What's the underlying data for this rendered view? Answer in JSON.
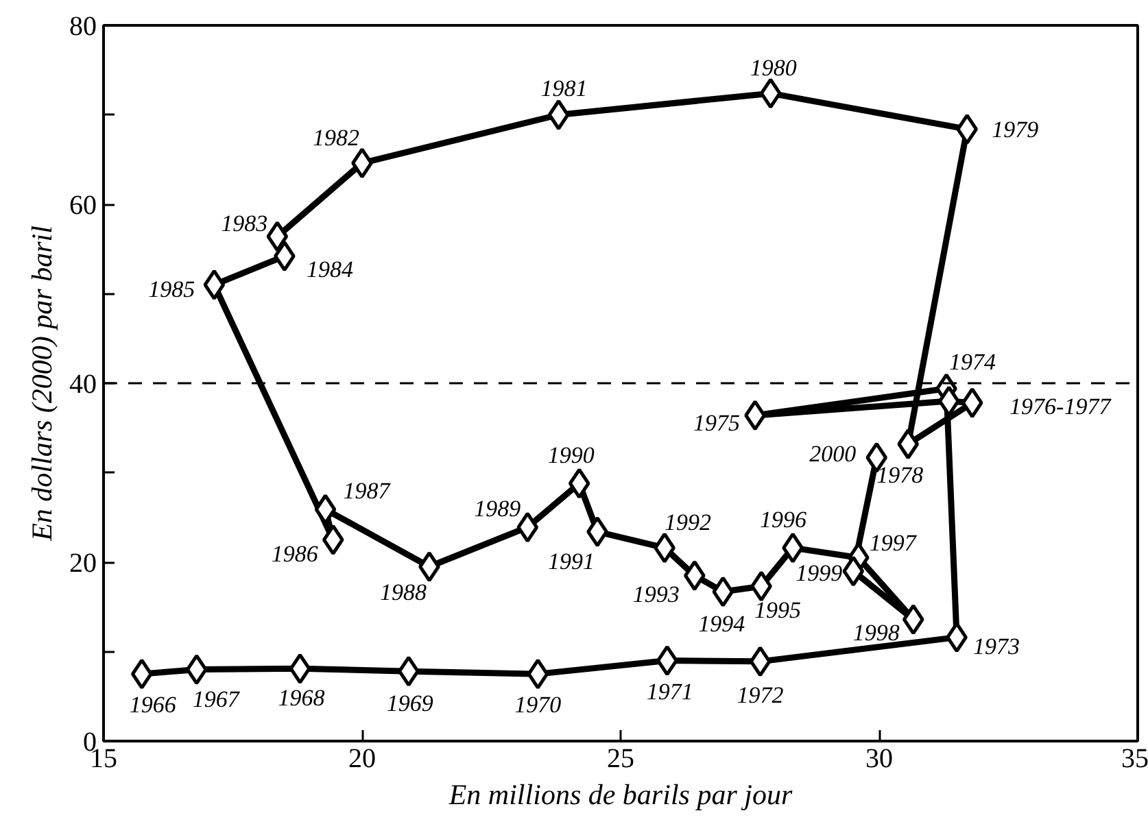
{
  "chart_data": {
    "type": "line",
    "xlabel": "En millions de barils par jour",
    "ylabel": "En dollars (2000) par baril",
    "marker": "diamond",
    "line_style": "solid",
    "series": [
      {
        "color": "#000000",
        "x": [
          15.74,
          16.8,
          18.8,
          20.9,
          23.4,
          25.9,
          27.7,
          31.5,
          31.3,
          27.6,
          31.35,
          31.8,
          30.56,
          31.7,
          27.9,
          23.8,
          20.0,
          18.36,
          18.5,
          17.14,
          19.44,
          19.29,
          21.3,
          23.2,
          24.2,
          24.55,
          25.85,
          26.43,
          26.98,
          27.72,
          28.33,
          29.6,
          30.66,
          29.5,
          29.95
        ],
        "values": [
          7.5,
          8.0,
          8.1,
          7.8,
          7.5,
          9.0,
          8.9,
          11.6,
          39.4,
          36.4,
          38.0,
          37.8,
          33.2,
          68.4,
          72.4,
          70.0,
          64.6,
          56.4,
          54.2,
          51.0,
          22.5,
          25.9,
          19.5,
          23.9,
          28.8,
          23.4,
          21.6,
          18.5,
          16.7,
          17.3,
          21.6,
          20.5,
          13.6,
          19.0,
          31.7
        ]
      }
    ],
    "xlim": [
      15,
      35
    ],
    "ylim": [
      0,
      80
    ],
    "xticks": [
      15,
      20,
      25,
      30,
      35
    ],
    "yticks": [
      0,
      {
        "value": 10,
        "label": null
      },
      20,
      {
        "value": 30,
        "label": null
      },
      40,
      {
        "value": 50,
        "label": null
      },
      60,
      {
        "value": 70,
        "label": null
      },
      80
    ],
    "grid": false,
    "ref_lines": [
      {
        "axis": "y",
        "value": 40,
        "label": null,
        "color": "#000000",
        "line_style": "dashed"
      }
    ],
    "annotations": [
      {
        "text": "1966",
        "x": 15.74,
        "y": 7.5
      },
      {
        "text": "1967",
        "x": 16.8,
        "y": 8.0
      },
      {
        "text": "1968",
        "x": 18.8,
        "y": 8.1
      },
      {
        "text": "1969",
        "x": 20.9,
        "y": 7.8
      },
      {
        "text": "1970",
        "x": 23.4,
        "y": 7.5
      },
      {
        "text": "1971",
        "x": 25.9,
        "y": 9.0
      },
      {
        "text": "1972",
        "x": 27.7,
        "y": 8.9
      },
      {
        "text": "1973",
        "x": 31.5,
        "y": 11.6
      },
      {
        "text": "1974",
        "x": 31.3,
        "y": 39.4
      },
      {
        "text": "1975",
        "x": 27.6,
        "y": 36.4
      },
      {
        "text": "1976-1977",
        "x": 31.8,
        "y": 37.8
      },
      {
        "text": "1978",
        "x": 30.56,
        "y": 33.2
      },
      {
        "text": "1979",
        "x": 31.7,
        "y": 68.4
      },
      {
        "text": "1980",
        "x": 27.9,
        "y": 72.4
      },
      {
        "text": "1981",
        "x": 23.8,
        "y": 70.0
      },
      {
        "text": "1982",
        "x": 20.0,
        "y": 64.6
      },
      {
        "text": "1983",
        "x": 18.36,
        "y": 56.4
      },
      {
        "text": "1984",
        "x": 18.5,
        "y": 54.2
      },
      {
        "text": "1985",
        "x": 17.14,
        "y": 51.0
      },
      {
        "text": "1986",
        "x": 19.44,
        "y": 22.5
      },
      {
        "text": "1987",
        "x": 19.29,
        "y": 25.9
      },
      {
        "text": "1988",
        "x": 21.3,
        "y": 19.5
      },
      {
        "text": "1989",
        "x": 23.2,
        "y": 23.9
      },
      {
        "text": "1990",
        "x": 24.2,
        "y": 28.8
      },
      {
        "text": "1991",
        "x": 24.55,
        "y": 23.4
      },
      {
        "text": "1992",
        "x": 25.85,
        "y": 21.6
      },
      {
        "text": "1993",
        "x": 26.43,
        "y": 18.5
      },
      {
        "text": "1994",
        "x": 26.98,
        "y": 16.7
      },
      {
        "text": "1995",
        "x": 27.72,
        "y": 17.3
      },
      {
        "text": "1996",
        "x": 28.33,
        "y": 21.6
      },
      {
        "text": "1997",
        "x": 29.6,
        "y": 20.5
      },
      {
        "text": "1998",
        "x": 30.66,
        "y": 13.6
      },
      {
        "text": "1999",
        "x": 29.5,
        "y": 19.0
      },
      {
        "text": "2000",
        "x": 29.95,
        "y": 31.7
      }
    ]
  }
}
